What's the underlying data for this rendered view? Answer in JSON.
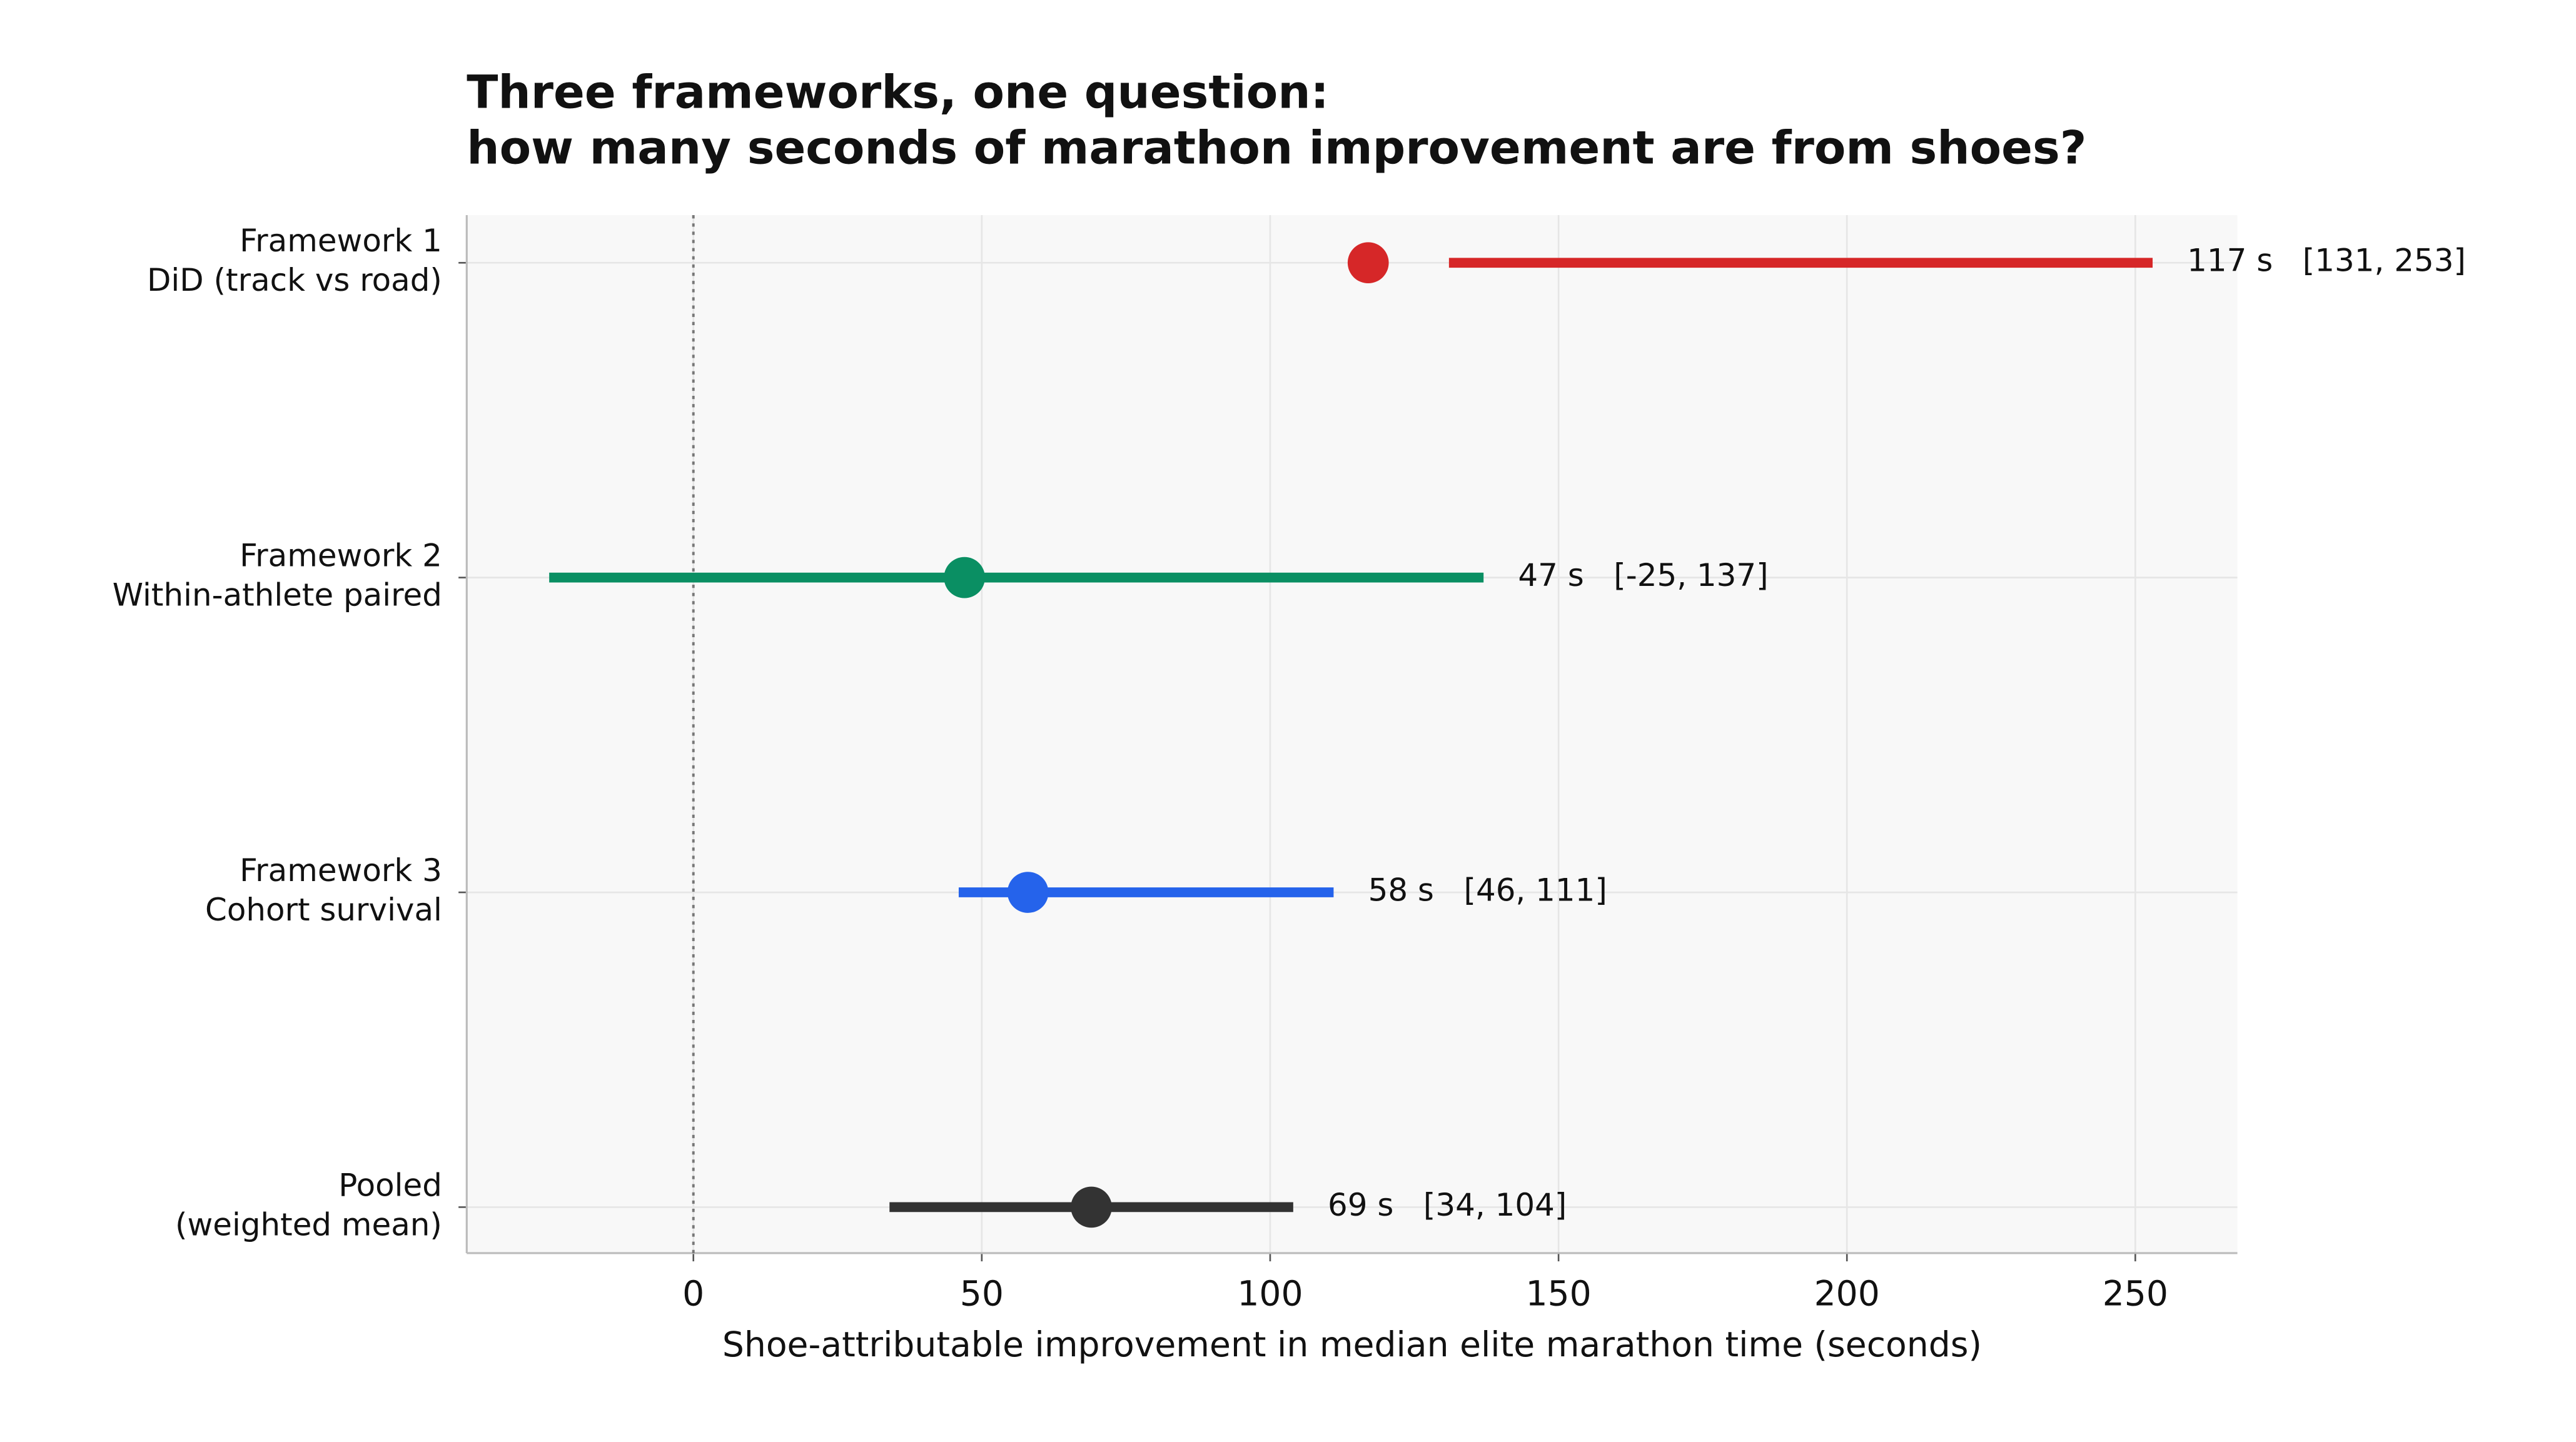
{
  "chart_data": {
    "type": "forest",
    "title": [
      "Three frameworks, one question:",
      "how many seconds of marathon improvement are from shoes?"
    ],
    "x_label": "Shoe-attributable improvement in median elite marathon time (seconds)",
    "categories": [
      [
        "Framework 1",
        "DiD (track vs road)"
      ],
      [
        "Framework 2",
        "Within-athlete paired"
      ],
      [
        "Framework 3",
        "Cohort survival"
      ],
      [
        "Pooled",
        "(weighted mean)"
      ]
    ],
    "values": [
      117,
      47,
      58,
      69
    ],
    "lower": [
      131,
      -25,
      46,
      34
    ],
    "upper": [
      253,
      137,
      111,
      104
    ],
    "value_labels": [
      "117 s   [131, 253]",
      "47 s   [-25, 137]",
      "58 s   [46, 111]",
      "69 s   [34, 104]"
    ],
    "colors": [
      "#d62728",
      "#0a8f63",
      "#2563eb",
      "#333333"
    ],
    "xlim": [
      -39.3,
      267.7
    ],
    "xticks": [
      0,
      50,
      100,
      150,
      200,
      250
    ],
    "reference_line": 0,
    "grid": true
  }
}
